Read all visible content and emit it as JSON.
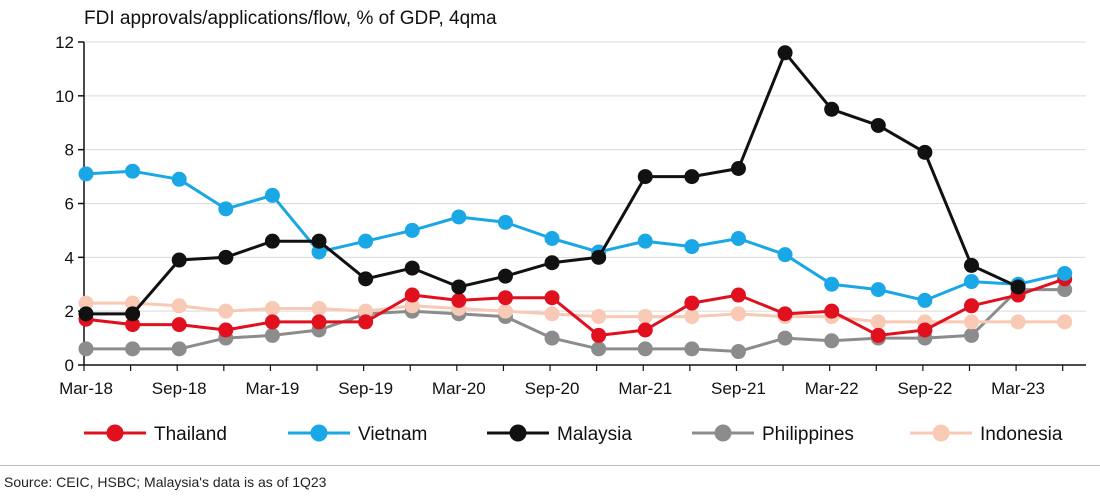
{
  "title": "FDI approvals/applications/flow,   % of GDP, 4qma",
  "source": "Source: CEIC, HSBC; Malaysia's data is as of 1Q23",
  "chart_data": {
    "type": "line",
    "title": "FDI approvals/applications/flow,   % of GDP, 4qma",
    "xlabel": "",
    "ylabel": "",
    "ylim": [
      0,
      12
    ],
    "yticks": [
      "0",
      "2",
      "4",
      "6",
      "8",
      "10",
      "12"
    ],
    "x": [
      "Mar-18",
      "Jun-18",
      "Sep-18",
      "Dec-18",
      "Mar-19",
      "Jun-19",
      "Sep-19",
      "Dec-19",
      "Mar-20",
      "Jun-20",
      "Sep-20",
      "Dec-20",
      "Mar-21",
      "Jun-21",
      "Sep-21",
      "Dec-21",
      "Mar-22",
      "Jun-22",
      "Sep-22",
      "Dec-22",
      "Mar-23",
      "Jun-23"
    ],
    "xtick_labels": [
      "Mar-18",
      "Sep-18",
      "Mar-19",
      "Sep-19",
      "Mar-20",
      "Sep-20",
      "Mar-21",
      "Sep-21",
      "Mar-22",
      "Sep-22",
      "Mar-23"
    ],
    "grid": true,
    "legend_position": "bottom",
    "series": [
      {
        "name": "Philippines",
        "color": "#8c8c8c",
        "values": [
          0.6,
          0.6,
          0.6,
          1.0,
          1.1,
          1.3,
          1.9,
          2.0,
          1.9,
          1.8,
          1.0,
          0.6,
          0.6,
          0.6,
          0.5,
          1.0,
          0.9,
          1.0,
          1.0,
          1.1,
          2.8,
          2.8
        ]
      },
      {
        "name": "Indonesia",
        "color": "#f8c9b5",
        "values": [
          2.3,
          2.3,
          2.2,
          2.0,
          2.1,
          2.1,
          2.0,
          2.2,
          2.1,
          2.0,
          1.9,
          1.8,
          1.8,
          1.8,
          1.9,
          1.8,
          1.8,
          1.6,
          1.6,
          1.6,
          1.6,
          1.6
        ]
      },
      {
        "name": "Thailand",
        "color": "#e0101e",
        "values": [
          1.7,
          1.5,
          1.5,
          1.3,
          1.6,
          1.6,
          1.6,
          2.6,
          2.4,
          2.5,
          2.5,
          1.1,
          1.3,
          2.3,
          2.6,
          1.9,
          2.0,
          1.1,
          1.3,
          2.2,
          2.6,
          3.2
        ]
      },
      {
        "name": "Vietnam",
        "color": "#1aa7e6",
        "values": [
          7.1,
          7.2,
          6.9,
          5.8,
          6.3,
          4.2,
          4.6,
          5.0,
          5.5,
          5.3,
          4.7,
          4.2,
          4.6,
          4.4,
          4.7,
          4.1,
          3.0,
          2.8,
          2.4,
          3.1,
          3.0,
          3.4
        ]
      },
      {
        "name": "Malaysia",
        "color": "#111111",
        "values": [
          1.9,
          1.9,
          3.9,
          4.0,
          4.6,
          4.6,
          3.2,
          3.6,
          2.9,
          3.3,
          3.8,
          4.0,
          7.0,
          7.0,
          7.3,
          11.6,
          9.5,
          8.9,
          7.9,
          3.7,
          2.9,
          null
        ]
      }
    ],
    "legend_order": [
      "Thailand",
      "Vietnam",
      "Malaysia",
      "Philippines",
      "Indonesia"
    ]
  }
}
